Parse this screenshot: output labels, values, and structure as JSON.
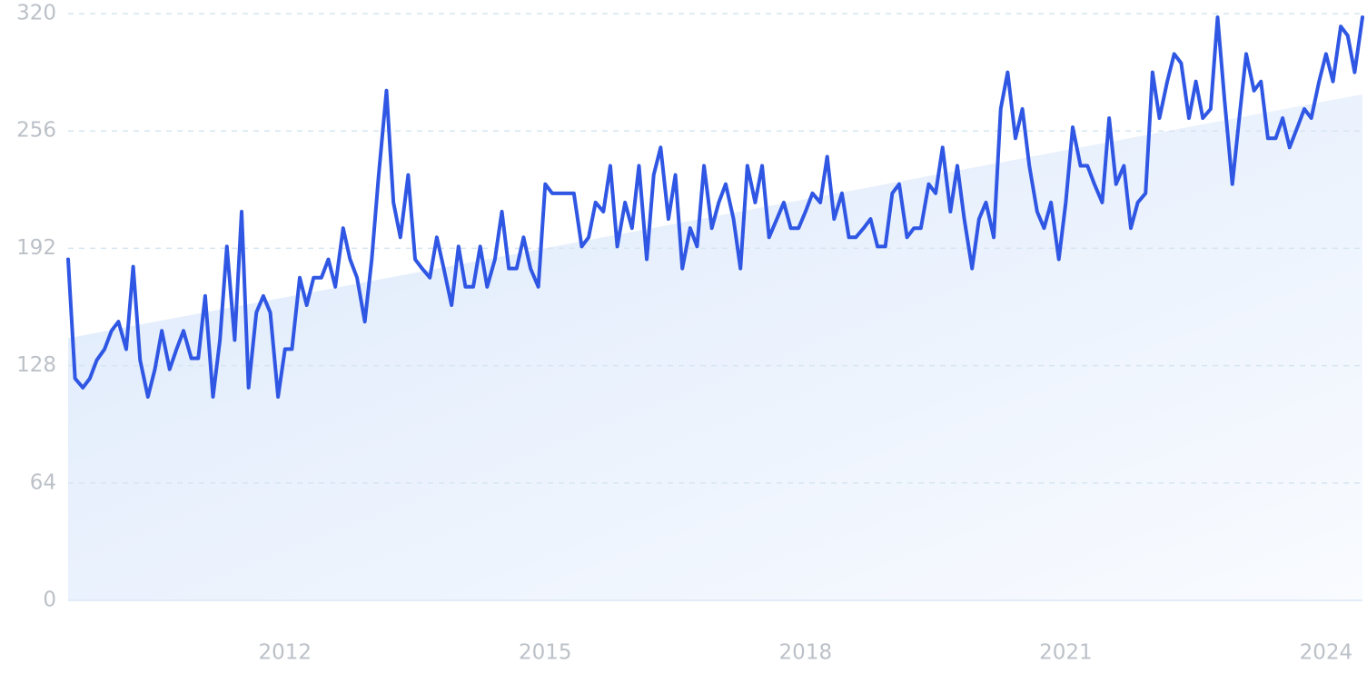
{
  "chart_data": {
    "type": "line",
    "x": [
      2009.5,
      2009.58,
      2009.67,
      2009.75,
      2009.83,
      2009.92,
      2010,
      2010.08,
      2010.17,
      2010.25,
      2010.33,
      2010.42,
      2010.5,
      2010.58,
      2010.67,
      2010.75,
      2010.83,
      2010.92,
      2011,
      2011.08,
      2011.17,
      2011.25,
      2011.33,
      2011.42,
      2011.5,
      2011.58,
      2011.67,
      2011.75,
      2011.83,
      2011.92,
      2012,
      2012.08,
      2012.17,
      2012.25,
      2012.33,
      2012.42,
      2012.5,
      2012.58,
      2012.67,
      2012.75,
      2012.83,
      2012.92,
      2013,
      2013.08,
      2013.17,
      2013.25,
      2013.33,
      2013.42,
      2013.5,
      2013.58,
      2013.67,
      2013.75,
      2013.83,
      2013.92,
      2014,
      2014.08,
      2014.17,
      2014.25,
      2014.33,
      2014.42,
      2014.5,
      2014.58,
      2014.67,
      2014.75,
      2014.83,
      2014.92,
      2015,
      2015.08,
      2015.17,
      2015.25,
      2015.33,
      2015.42,
      2015.5,
      2015.58,
      2015.67,
      2015.75,
      2015.83,
      2015.92,
      2016,
      2016.08,
      2016.17,
      2016.25,
      2016.33,
      2016.42,
      2016.5,
      2016.58,
      2016.67,
      2016.75,
      2016.83,
      2016.92,
      2017,
      2017.08,
      2017.17,
      2017.25,
      2017.33,
      2017.42,
      2017.5,
      2017.58,
      2017.67,
      2017.75,
      2017.83,
      2017.92,
      2018,
      2018.08,
      2018.17,
      2018.25,
      2018.33,
      2018.42,
      2018.5,
      2018.58,
      2018.67,
      2018.75,
      2018.83,
      2018.92,
      2019,
      2019.08,
      2019.17,
      2019.25,
      2019.33,
      2019.42,
      2019.5,
      2019.58,
      2019.67,
      2019.75,
      2019.83,
      2019.92,
      2020,
      2020.08,
      2020.17,
      2020.25,
      2020.33,
      2020.42,
      2020.5,
      2020.58,
      2020.67,
      2020.75,
      2020.83,
      2020.92,
      2021,
      2021.08,
      2021.17,
      2021.25,
      2021.33,
      2021.42,
      2021.5,
      2021.58,
      2021.67,
      2021.75,
      2021.83,
      2021.92,
      2022,
      2022.08,
      2022.17,
      2022.25,
      2022.33,
      2022.42,
      2022.5,
      2022.58,
      2022.67,
      2022.75,
      2022.83,
      2022.92,
      2023,
      2023.08,
      2023.17,
      2023.25,
      2023.33,
      2023.42,
      2023.5,
      2023.58,
      2023.67,
      2023.75,
      2023.83,
      2023.92,
      2024,
      2024.08,
      2024.17,
      2024.25,
      2024.33,
      2024.42
    ],
    "values": [
      186,
      121,
      116,
      121,
      131,
      137,
      147,
      152,
      137,
      182,
      131,
      111,
      126,
      147,
      126,
      137,
      147,
      132,
      132,
      166,
      111,
      142,
      193,
      142,
      212,
      116,
      157,
      166,
      157,
      111,
      137,
      137,
      176,
      161,
      176,
      176,
      186,
      171,
      203,
      186,
      176,
      152,
      186,
      232,
      278,
      217,
      198,
      232,
      186,
      181,
      176,
      198,
      181,
      161,
      193,
      171,
      171,
      193,
      171,
      186,
      212,
      181,
      181,
      198,
      181,
      171,
      227,
      222,
      222,
      222,
      222,
      193,
      198,
      217,
      212,
      237,
      193,
      217,
      203,
      237,
      186,
      232,
      247,
      208,
      232,
      181,
      203,
      193,
      237,
      203,
      217,
      227,
      208,
      181,
      237,
      217,
      237,
      198,
      208,
      217,
      203,
      203,
      212,
      222,
      217,
      242,
      208,
      222,
      198,
      198,
      203,
      208,
      193,
      193,
      222,
      227,
      198,
      203,
      203,
      227,
      222,
      247,
      212,
      237,
      208,
      181,
      208,
      217,
      198,
      268,
      288,
      252,
      268,
      237,
      212,
      203,
      217,
      186,
      217,
      258,
      237,
      237,
      227,
      217,
      263,
      227,
      237,
      203,
      217,
      222,
      288,
      263,
      283,
      298,
      293,
      263,
      283,
      263,
      268,
      318,
      273,
      227,
      263,
      298,
      278,
      283,
      252,
      252,
      263,
      247,
      258,
      268,
      263,
      283,
      298,
      283,
      313,
      308,
      288,
      318
    ],
    "color": "#2f57e4",
    "trend": {
      "x": [
        2009.5,
        2024.42
      ],
      "values": [
        143,
        276
      ],
      "color": "#dce9fb"
    },
    "xlim": [
      2009.5,
      2024.42
    ],
    "xticks": [
      2012,
      2015,
      2018,
      2021,
      2024
    ],
    "ylim": [
      0,
      320
    ],
    "yticks": [
      0,
      64,
      128,
      192,
      256,
      320
    ],
    "grid": true
  }
}
